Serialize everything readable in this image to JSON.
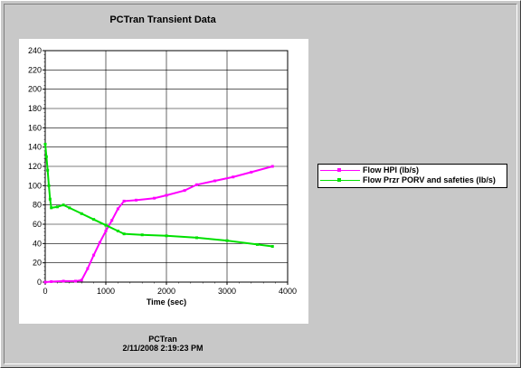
{
  "window": {
    "title": "PCTran Transient Data"
  },
  "footer": {
    "app": "PCTran",
    "timestamp": "2/11/2008 2:19:23 PM"
  },
  "colors": {
    "hpi": "#ff00ff",
    "porv": "#00e000",
    "grid": "#000000",
    "background": "#c8c8c8"
  },
  "chart_data": {
    "type": "line",
    "title": "PCTran Transient Data",
    "xlabel": "Time (sec)",
    "ylabel": "",
    "xlim": [
      0,
      4000
    ],
    "ylim": [
      0,
      240
    ],
    "xticks": [
      "0",
      "1000",
      "2000",
      "3000",
      "4000"
    ],
    "yticks": [
      "0",
      "20",
      "40",
      "60",
      "80",
      "100",
      "120",
      "140",
      "160",
      "180",
      "200",
      "220",
      "240"
    ],
    "grid": true,
    "legend_position": "right",
    "series": [
      {
        "name": "Flow HPI (lb/s)",
        "color": "#ff00ff",
        "x": [
          0,
          100,
          300,
          500,
          600,
          700,
          800,
          900,
          1000,
          1100,
          1200,
          1300,
          1500,
          1800,
          2000,
          2300,
          2500,
          2800,
          3100,
          3400,
          3750
        ],
        "y": [
          0,
          0.5,
          1,
          1,
          2,
          14,
          28,
          41,
          53,
          64,
          76,
          84,
          85,
          87,
          90,
          95,
          101,
          105,
          109,
          114,
          120
        ]
      },
      {
        "name": "Flow Przr PORV and safeties (lb/s)",
        "color": "#00e000",
        "x": [
          0,
          20,
          40,
          60,
          80,
          100,
          200,
          300,
          400,
          600,
          800,
          1000,
          1200,
          1300,
          1600,
          2000,
          2500,
          3000,
          3500,
          3750
        ],
        "y": [
          143,
          130,
          116,
          100,
          86,
          77,
          78,
          80,
          77,
          71,
          65,
          59,
          53,
          50,
          49,
          48,
          46,
          43,
          39,
          37
        ]
      }
    ]
  }
}
